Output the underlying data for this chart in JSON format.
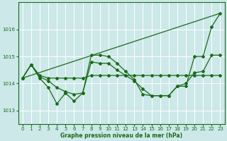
{
  "xlabel": "Graphe pression niveau de la mer (hPa)",
  "bg_color": "#cce8e8",
  "grid_color": "#ffffff",
  "line_color": "#1a6b1a",
  "xlim": [
    -0.5,
    23.5
  ],
  "ylim": [
    1012.5,
    1017.0
  ],
  "yticks": [
    1013,
    1014,
    1015,
    1016
  ],
  "xticks": [
    0,
    1,
    2,
    3,
    4,
    5,
    6,
    7,
    8,
    9,
    10,
    11,
    12,
    13,
    14,
    15,
    16,
    17,
    18,
    19,
    20,
    21,
    22,
    23
  ],
  "trend_x": [
    0,
    23
  ],
  "trend_y": [
    1014.2,
    1016.6
  ],
  "series_flat_x": [
    0,
    1,
    2,
    3,
    4,
    5,
    6,
    7,
    8,
    9,
    10,
    11,
    12,
    13,
    14,
    15,
    16,
    17,
    18,
    19,
    20,
    21,
    22,
    23
  ],
  "series_flat_y": [
    1014.2,
    1014.7,
    1014.3,
    1014.2,
    1014.2,
    1014.2,
    1014.2,
    1014.2,
    1014.3,
    1014.3,
    1014.3,
    1014.3,
    1014.3,
    1014.3,
    1014.3,
    1014.3,
    1014.3,
    1014.3,
    1014.3,
    1014.3,
    1014.3,
    1014.3,
    1014.3,
    1014.3
  ],
  "series_jagged_x": [
    0,
    1,
    2,
    3,
    4,
    5,
    6,
    7,
    8,
    9,
    10,
    11,
    12,
    13,
    14,
    15,
    16,
    17,
    18,
    19,
    20,
    21,
    22,
    23
  ],
  "series_jagged_y": [
    1014.2,
    1014.7,
    1014.2,
    1013.85,
    1013.25,
    1013.65,
    1013.35,
    1013.65,
    1015.05,
    1015.05,
    1015.0,
    1014.75,
    1014.45,
    1014.15,
    1013.6,
    1013.55,
    1013.55,
    1013.55,
    1013.9,
    1013.9,
    1015.0,
    1015.0,
    1016.1,
    1016.6
  ],
  "series_mid_x": [
    0,
    1,
    2,
    3,
    4,
    5,
    6,
    7,
    8,
    9,
    10,
    11,
    12,
    13,
    14,
    15,
    16,
    17,
    18,
    19,
    20,
    21,
    22,
    23
  ],
  "series_mid_y": [
    1014.2,
    1014.7,
    1014.25,
    1014.1,
    1013.85,
    1013.7,
    1013.6,
    1013.65,
    1014.8,
    1014.75,
    1014.75,
    1014.5,
    1014.3,
    1014.1,
    1013.8,
    1013.55,
    1013.55,
    1013.55,
    1013.9,
    1014.0,
    1014.4,
    1014.45,
    1015.05,
    1015.05
  ]
}
